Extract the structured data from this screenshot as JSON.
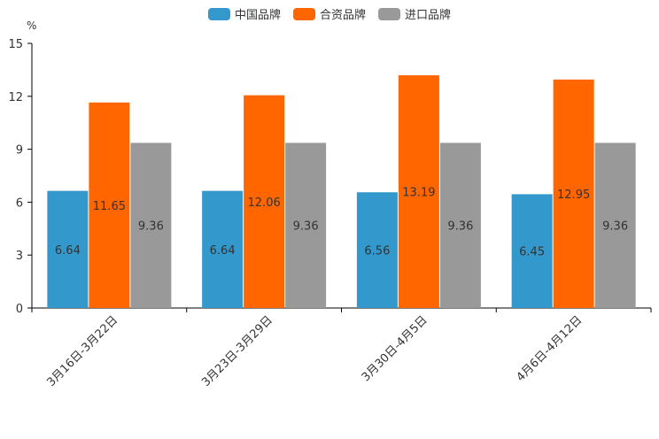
{
  "chart_data": {
    "type": "bar",
    "unit": "%",
    "categories": [
      "3月16日-3月22日",
      "3月23日-3月29日",
      "3月30日-4月5日",
      "4月6日-4月12日"
    ],
    "series": [
      {
        "name": "中国品牌",
        "color": "#3398cc",
        "values": [
          6.64,
          6.64,
          6.56,
          6.45
        ]
      },
      {
        "name": "合资品牌",
        "color": "#ff6600",
        "values": [
          11.65,
          12.06,
          13.19,
          12.95
        ]
      },
      {
        "name": "进口品牌",
        "color": "#999999",
        "values": [
          9.36,
          9.36,
          9.36,
          9.36
        ]
      }
    ],
    "ylim": [
      0,
      15
    ],
    "yticks": [
      0,
      3,
      6,
      9,
      12,
      15
    ],
    "legend_position": "top-center",
    "grid": false
  }
}
